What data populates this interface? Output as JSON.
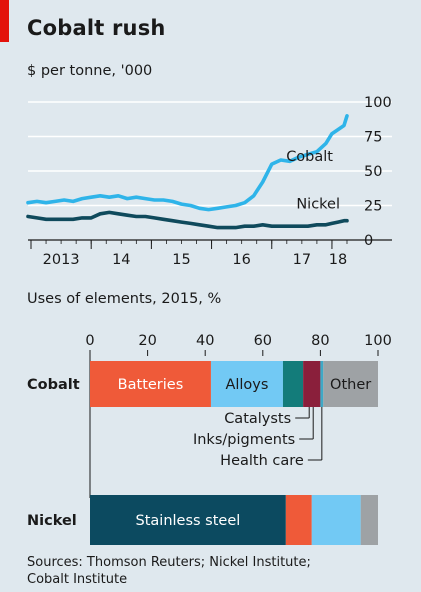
{
  "title": "Cobalt rush",
  "sources": "Sources: Thomson Reuters; Nickel Institute;\nCobalt Institute",
  "colors": {
    "background": "#dfe8ee",
    "accent_red": "#e3120b",
    "cobalt_line": "#2fb4e9",
    "nickel_line": "#0f4a5c",
    "batteries": "#ef5a39",
    "alloys": "#72c9f4",
    "catalysts": "#137c7a",
    "inks_pigments": "#8a1f3b",
    "health_care": "#3fa9c6",
    "other": "#9ea2a5",
    "stainless_steel": "#0c4a60"
  },
  "chart_data": [
    {
      "type": "line",
      "title": "",
      "ylabel": "$ per tonne, '000",
      "xlabel": "",
      "x_tick_labels": [
        "2013",
        "14",
        "15",
        "16",
        "17",
        "18"
      ],
      "y_tick_labels": [
        "0",
        "25",
        "50",
        "75",
        "100"
      ],
      "ylim": [
        0,
        100
      ],
      "xlim": [
        2012.95,
        2018.3
      ],
      "y_axis_side": "right",
      "grid": true,
      "series": [
        {
          "name": "Cobalt",
          "x": [
            2012.95,
            2013.1,
            2013.25,
            2013.4,
            2013.55,
            2013.7,
            2013.85,
            2014.0,
            2014.15,
            2014.3,
            2014.45,
            2014.6,
            2014.75,
            2014.9,
            2015.05,
            2015.2,
            2015.35,
            2015.5,
            2015.65,
            2015.8,
            2015.95,
            2016.1,
            2016.25,
            2016.4,
            2016.55,
            2016.7,
            2016.85,
            2017.0,
            2017.15,
            2017.3,
            2017.45,
            2017.6,
            2017.75,
            2017.9,
            2018.0,
            2018.1,
            2018.2,
            2018.25
          ],
          "y": [
            27,
            28,
            27,
            28,
            29,
            28,
            30,
            31,
            32,
            31,
            32,
            30,
            31,
            30,
            29,
            29,
            28,
            26,
            25,
            23,
            22,
            23,
            24,
            25,
            27,
            32,
            42,
            55,
            58,
            57,
            60,
            62,
            64,
            70,
            77,
            80,
            83,
            90
          ]
        },
        {
          "name": "Nickel",
          "x": [
            2012.95,
            2013.1,
            2013.25,
            2013.4,
            2013.55,
            2013.7,
            2013.85,
            2014.0,
            2014.15,
            2014.3,
            2014.45,
            2014.6,
            2014.75,
            2014.9,
            2015.05,
            2015.2,
            2015.35,
            2015.5,
            2015.65,
            2015.8,
            2015.95,
            2016.1,
            2016.25,
            2016.4,
            2016.55,
            2016.7,
            2016.85,
            2017.0,
            2017.15,
            2017.3,
            2017.45,
            2017.6,
            2017.75,
            2017.9,
            2018.0,
            2018.1,
            2018.2,
            2018.25
          ],
          "y": [
            17,
            16,
            15,
            15,
            15,
            15,
            16,
            16,
            19,
            20,
            19,
            18,
            17,
            17,
            16,
            15,
            14,
            13,
            12,
            11,
            10,
            9,
            9,
            9,
            10,
            10,
            11,
            10,
            10,
            10,
            10,
            10,
            11,
            11,
            12,
            13,
            14,
            14
          ]
        }
      ]
    },
    {
      "type": "bar",
      "orientation": "horizontal",
      "stacked": true,
      "title": "Uses of elements, 2015, %",
      "xlim": [
        0,
        100
      ],
      "x_tick_labels": [
        "0",
        "20",
        "40",
        "60",
        "80",
        "100"
      ],
      "categories": [
        "Cobalt",
        "Nickel"
      ],
      "series": [
        {
          "name": "Batteries",
          "values": [
            42,
            0
          ]
        },
        {
          "name": "Alloys",
          "values": [
            25,
            0
          ]
        },
        {
          "name": "Catalysts",
          "values": [
            7,
            0
          ]
        },
        {
          "name": "Inks/pigments",
          "values": [
            6,
            0
          ]
        },
        {
          "name": "Health care",
          "values": [
            1,
            0
          ]
        },
        {
          "name": "Other",
          "values": [
            19,
            0
          ]
        },
        {
          "name": "Stainless steel",
          "values": [
            0,
            68
          ]
        },
        {
          "name": "",
          "values": [
            0,
            9
          ]
        },
        {
          "name": "",
          "values": [
            0,
            17
          ]
        },
        {
          "name": "",
          "values": [
            0,
            6
          ]
        }
      ],
      "callouts": [
        "Catalysts",
        "Inks/pigments",
        "Health care"
      ]
    }
  ]
}
